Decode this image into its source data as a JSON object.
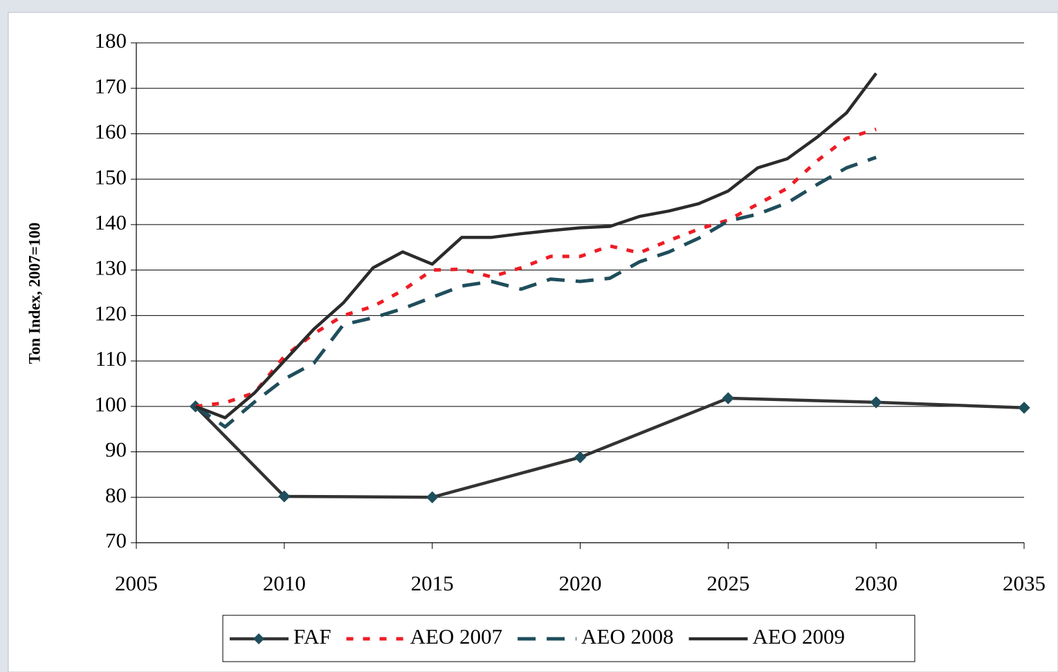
{
  "chart_data": {
    "type": "line",
    "y_label": "Ton Index, 2007=100",
    "xlim": [
      2005,
      2035
    ],
    "xticks": [
      2005,
      2010,
      2015,
      2020,
      2025,
      2030,
      2035
    ],
    "ylim": [
      70,
      180
    ],
    "yticks": [
      70,
      80,
      90,
      100,
      110,
      120,
      130,
      140,
      150,
      160,
      170,
      180
    ],
    "grid": true,
    "legend": "bottom",
    "series": [
      {
        "name": "FAF",
        "color": "#333333",
        "marker": "diamond",
        "marker_color": "#1f4e5c",
        "line_style": "solid",
        "x": [
          2007,
          2010,
          2015,
          2020,
          2025,
          2030,
          2035
        ],
        "values": [
          100,
          80.2,
          80,
          88.8,
          101.8,
          100.9,
          99.7
        ]
      },
      {
        "name": "AEO 2007",
        "color": "#ee1c25",
        "line_style": "dotted",
        "x": [
          2007,
          2008,
          2009,
          2010,
          2011,
          2012,
          2013,
          2014,
          2015,
          2016,
          2017,
          2018,
          2019,
          2020,
          2021,
          2022,
          2023,
          2024,
          2025,
          2026,
          2027,
          2028,
          2029,
          2030
        ],
        "values": [
          100,
          100.8,
          103,
          111,
          116,
          120,
          122,
          125.5,
          130,
          130.2,
          128.5,
          130.5,
          133,
          133,
          135.3,
          133.8,
          136.5,
          139,
          141,
          144.5,
          148,
          154,
          159,
          161
        ]
      },
      {
        "name": "AEO 2008",
        "color": "#1f4e5c",
        "line_style": "dashed",
        "x": [
          2007,
          2008,
          2009,
          2010,
          2011,
          2012,
          2013,
          2014,
          2015,
          2016,
          2017,
          2018,
          2019,
          2020,
          2021,
          2022,
          2023,
          2024,
          2025,
          2026,
          2027,
          2028,
          2029,
          2030
        ],
        "values": [
          100,
          95.5,
          101,
          106,
          109.5,
          118,
          119.5,
          121.5,
          124,
          126.5,
          127.5,
          125.8,
          128,
          127.5,
          128.2,
          131.8,
          134,
          137,
          140.8,
          142.3,
          144.8,
          148.8,
          152.5,
          154.8
        ]
      },
      {
        "name": "AEO 2009",
        "color": "#2b2b2b",
        "line_style": "solid",
        "x": [
          2007,
          2008,
          2009,
          2010,
          2011,
          2012,
          2013,
          2014,
          2015,
          2016,
          2017,
          2018,
          2019,
          2020,
          2021,
          2022,
          2023,
          2024,
          2025,
          2026,
          2027,
          2028,
          2029,
          2030
        ],
        "values": [
          100,
          97.5,
          103,
          110,
          117,
          122.8,
          130.5,
          134,
          131.3,
          137.2,
          137.2,
          138,
          138.7,
          139.3,
          139.6,
          141.8,
          143,
          144.6,
          147.4,
          152.5,
          154.5,
          159.2,
          164.6,
          173.3
        ]
      }
    ]
  }
}
